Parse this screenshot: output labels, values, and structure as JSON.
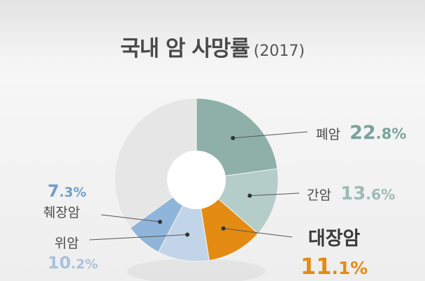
{
  "title": "국내 암 사망률",
  "year": "(2017)",
  "chart_data": {
    "type": "pie",
    "title": "국내 암 사망률 (2017)",
    "slices": [
      {
        "name": "폐암",
        "value": 22.8,
        "value_label": "22.8%",
        "color": "#8eb0a8",
        "label_color": "#7aa39a"
      },
      {
        "name": "간암",
        "value": 13.6,
        "value_label": "13.6%",
        "color": "#b5cdc8",
        "label_color": "#9dbab4"
      },
      {
        "name": "대장암",
        "value": 11.1,
        "value_label": "11.1%",
        "color": "#e38b12",
        "label_color": "#e38b12",
        "highlight": true
      },
      {
        "name": "위암",
        "value": 10.2,
        "value_label": "10.2%",
        "color": "#c2d5e8",
        "label_color": "#a9c2dc"
      },
      {
        "name": "췌장암",
        "value": 7.3,
        "value_label": "7.3%",
        "color": "#8fb6da",
        "label_color": "#6f9dcc"
      },
      {
        "name": "",
        "value": 35.0,
        "value_label": "",
        "color": "#e6e6e6"
      }
    ]
  }
}
